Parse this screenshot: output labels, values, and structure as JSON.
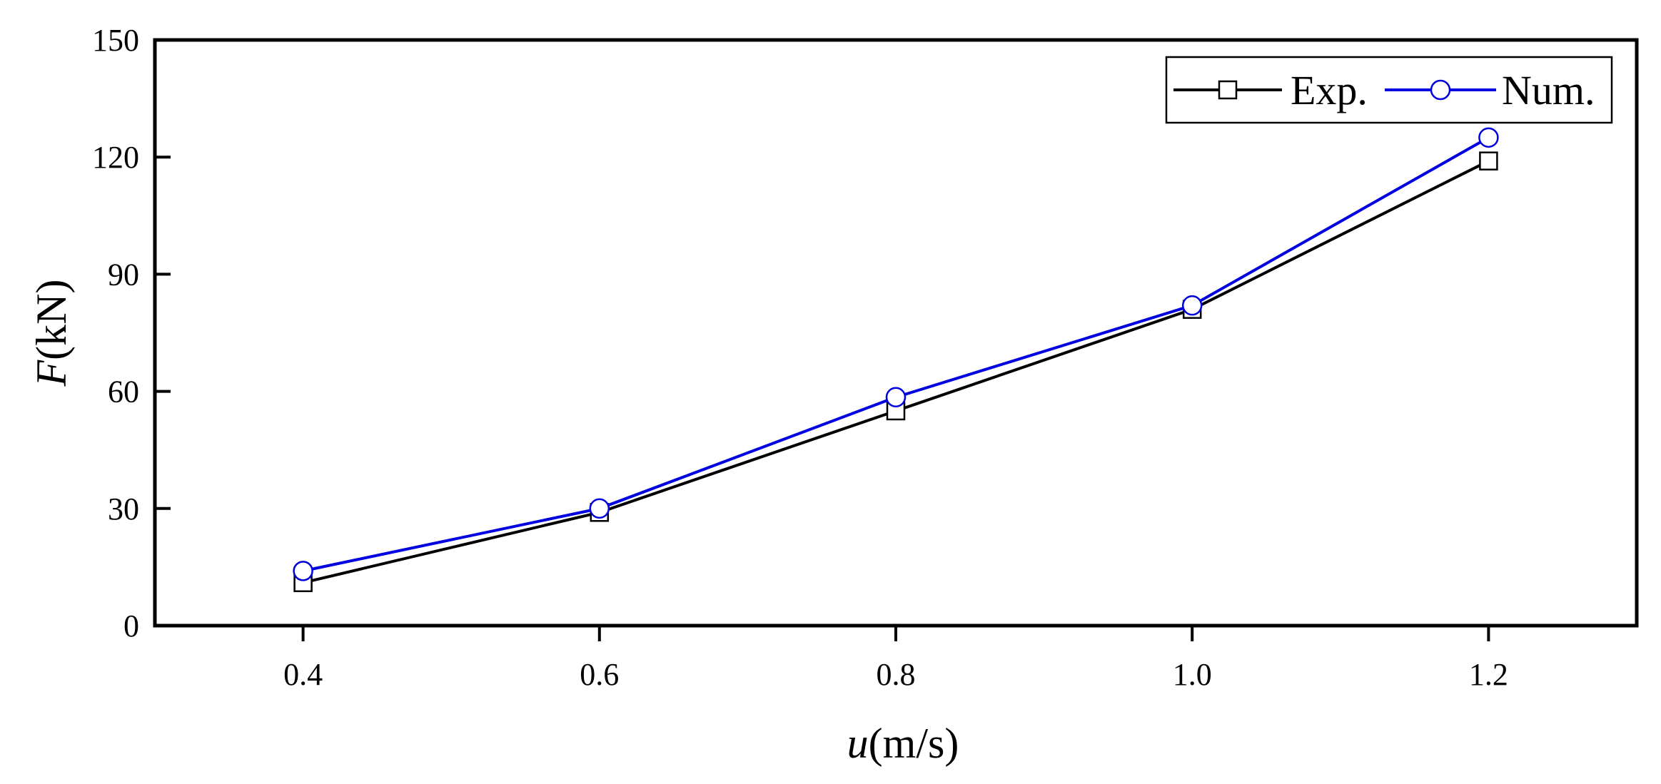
{
  "chart_data": {
    "type": "line",
    "title": "",
    "xlabel": {
      "var": "u",
      "unit": "(m/s)"
    },
    "ylabel": {
      "var": "F",
      "unit": "(kN)"
    },
    "xlim": [
      0.3,
      1.3
    ],
    "ylim": [
      0,
      150
    ],
    "xticks": [
      "0.4",
      "0.6",
      "0.8",
      "1.0",
      "1.2"
    ],
    "yticks": [
      "0",
      "30",
      "60",
      "90",
      "120",
      "150"
    ],
    "x": [
      0.4,
      0.6,
      0.8,
      1.0,
      1.2
    ],
    "series": [
      {
        "name": "Exp.",
        "marker": "square",
        "color": "#000000",
        "values": [
          11,
          29,
          55,
          81,
          119
        ]
      },
      {
        "name": "Num.",
        "marker": "circle",
        "color": "#0000e0",
        "values": [
          14,
          30,
          58.5,
          82,
          125
        ]
      }
    ],
    "grid": false,
    "legend": "top-right"
  }
}
